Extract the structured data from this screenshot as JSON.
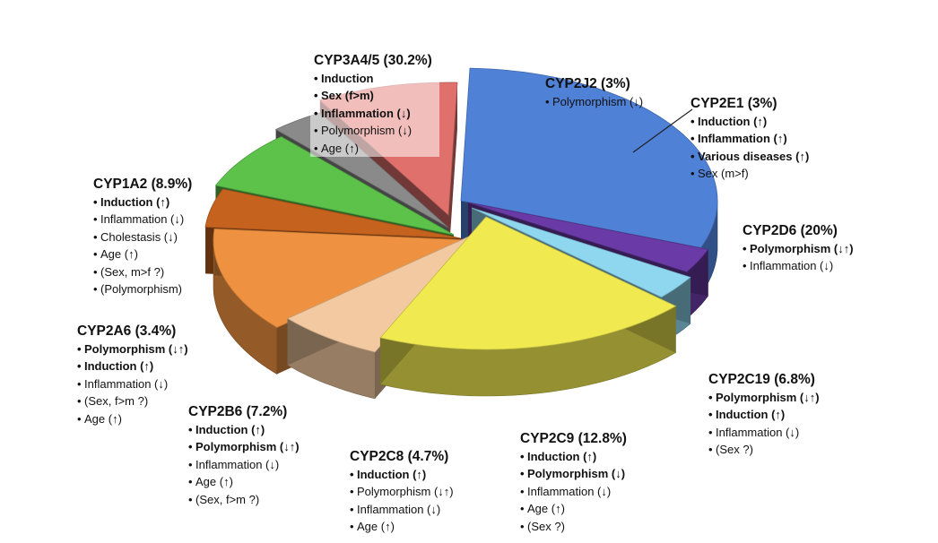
{
  "chart_data": {
    "type": "pie",
    "title": "",
    "style": "3d exploded pie",
    "slices": [
      {
        "name": "CYP3A4/5",
        "label": "CYP3A4/5 (30.2%)",
        "value": 30.2,
        "color": "#4f81d6",
        "notes": [
          {
            "text": "Induction",
            "bold": true
          },
          {
            "text": "Sex (f>m)",
            "bold": true
          },
          {
            "text": "Inflammation (↓)",
            "bold": true
          },
          {
            "text": "Polymorphism (↓)",
            "bold": false
          },
          {
            "text": "Age (↑)",
            "bold": false
          }
        ]
      },
      {
        "name": "CYP2J2",
        "label": "CYP2J2 (3%)",
        "value": 3,
        "color": "#6a3aa6",
        "notes": [
          {
            "text": "Polymorphism (↓)",
            "bold": false
          }
        ]
      },
      {
        "name": "CYP2E1",
        "label": "CYP2E1 (3%)",
        "value": 3,
        "color": "#8fd7ee",
        "notes": [
          {
            "text": "Induction (↑)",
            "bold": true
          },
          {
            "text": "Inflammation (↑)",
            "bold": true
          },
          {
            "text": "Various diseases (↑)",
            "bold": true
          },
          {
            "text": "Sex (m>f)",
            "bold": false
          }
        ]
      },
      {
        "name": "CYP2D6",
        "label": "CYP2D6 (20%)",
        "value": 20,
        "color": "#f0ea50",
        "notes": [
          {
            "text": "Polymorphism (↓↑)",
            "bold": true
          },
          {
            "text": "Inflammation (↓)",
            "bold": false
          }
        ]
      },
      {
        "name": "CYP2C19",
        "label": "CYP2C19 (6.8%)",
        "value": 6.8,
        "color": "#f2c9a0",
        "notes": [
          {
            "text": "Polymorphism (↓↑)",
            "bold": true
          },
          {
            "text": "Induction (↑)",
            "bold": true
          },
          {
            "text": "Inflammation (↓)",
            "bold": false
          },
          {
            "text": "(Sex ?)",
            "bold": false
          }
        ]
      },
      {
        "name": "CYP2C9",
        "label": "CYP2C9 (12.8%)",
        "value": 12.8,
        "color": "#ee9140",
        "notes": [
          {
            "text": "Induction (↑)",
            "bold": true
          },
          {
            "text": "Polymorphism (↓)",
            "bold": true
          },
          {
            "text": "Inflammation (↓)",
            "bold": false
          },
          {
            "text": "Age (↑)",
            "bold": false
          },
          {
            "text": "(Sex ?)",
            "bold": false
          }
        ]
      },
      {
        "name": "CYP2C8",
        "label": "CYP2C8 (4.7%)",
        "value": 4.7,
        "color": "#c4621e",
        "notes": [
          {
            "text": "Induction (↑)",
            "bold": true
          },
          {
            "text": "Polymorphism (↓↑)",
            "bold": false
          },
          {
            "text": "Inflammation (↓)",
            "bold": false
          },
          {
            "text": "Age (↑)",
            "bold": false
          }
        ]
      },
      {
        "name": "CYP2B6",
        "label": "CYP2B6 (7.2%)",
        "value": 7.2,
        "color": "#5cc24a",
        "notes": [
          {
            "text": "Induction (↑)",
            "bold": true
          },
          {
            "text": "Polymorphism (↓↑)",
            "bold": true
          },
          {
            "text": "Inflammation (↓)",
            "bold": false
          },
          {
            "text": "Age (↑)",
            "bold": false
          },
          {
            "text": "(Sex, f>m ?)",
            "bold": false
          }
        ]
      },
      {
        "name": "CYP2A6",
        "label": "CYP2A6 (3.4%)",
        "value": 3.4,
        "color": "#8a8a8a",
        "notes": [
          {
            "text": "Polymorphism (↓↑)",
            "bold": true
          },
          {
            "text": "Induction (↑)",
            "bold": true
          },
          {
            "text": "Inflammation (↓)",
            "bold": false
          },
          {
            "text": "(Sex, f>m ?)",
            "bold": false
          },
          {
            "text": "Age (↑)",
            "bold": false
          }
        ]
      },
      {
        "name": "CYP1A2",
        "label": "CYP1A2 (8.9%)",
        "value": 8.9,
        "color": "#e0706c",
        "notes": [
          {
            "text": "Induction (↑)",
            "bold": true
          },
          {
            "text": "Inflammation (↓)",
            "bold": false
          },
          {
            "text": "Cholestasis (↓)",
            "bold": false
          },
          {
            "text": "Age (↑)",
            "bold": false
          },
          {
            "text": "(Sex, m>f ?)",
            "bold": false
          },
          {
            "text": "(Polymorphism)",
            "bold": false
          }
        ]
      }
    ]
  }
}
